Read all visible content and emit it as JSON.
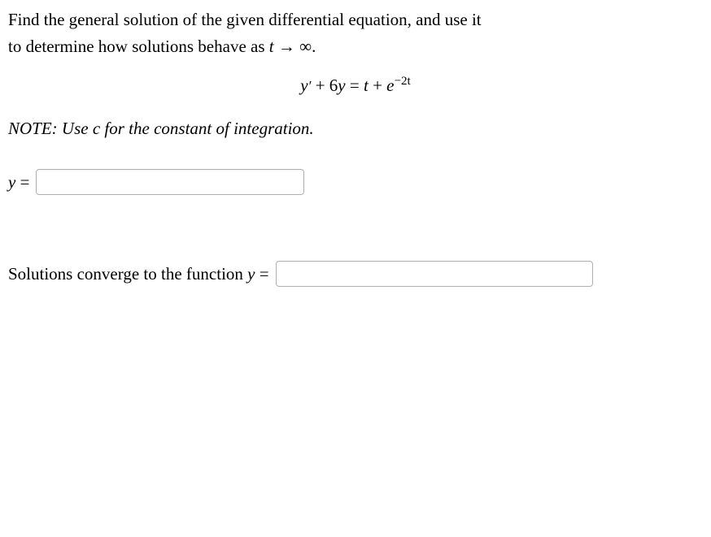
{
  "problem": {
    "line1": "Find the general solution of the given differential equation, and use it",
    "line2_prefix": "to determine how solutions behave as ",
    "line2_var": "t",
    "line2_arrow": " → ∞."
  },
  "equation": {
    "lhs_y": "y",
    "lhs_prime": "′",
    "lhs_plus": " + 6",
    "lhs_y2": "y",
    "eq": " = ",
    "rhs_t": "t",
    "rhs_plus": " + ",
    "rhs_e": "e",
    "rhs_exp": "−2t"
  },
  "note": {
    "prefix": "NOTE: Use ",
    "c": "c",
    "suffix": " for the constant of integration."
  },
  "answer1": {
    "label_y": "y",
    "label_eq": " ="
  },
  "answer2": {
    "prefix": "Solutions converge to the function ",
    "y": "y",
    "eq": " ="
  }
}
